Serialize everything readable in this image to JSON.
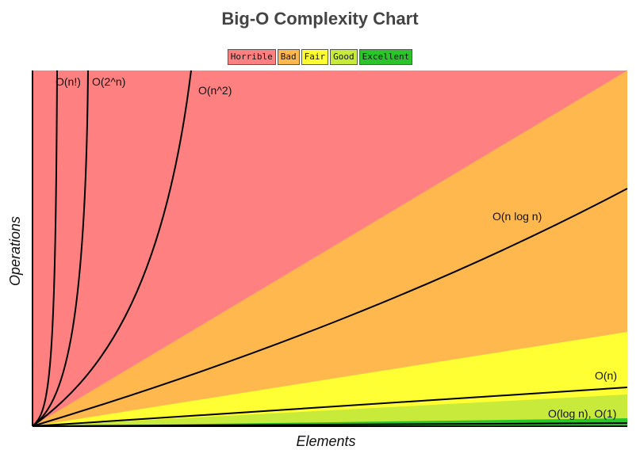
{
  "chart_data": {
    "type": "line",
    "title": "Big-O Complexity Chart",
    "xlabel": "Elements",
    "ylabel": "Operations",
    "grid": false,
    "legend_position": "top-center",
    "regions": [
      {
        "name": "Horrible",
        "color": "#ff8080"
      },
      {
        "name": "Bad",
        "color": "#ffb84d"
      },
      {
        "name": "Fair",
        "color": "#ffff33"
      },
      {
        "name": "Good",
        "color": "#c8ea3a"
      },
      {
        "name": "Excellent",
        "color": "#2bc52b"
      }
    ],
    "series": [
      {
        "name": "O(n!)"
      },
      {
        "name": "O(2^n)"
      },
      {
        "name": "O(n^2)"
      },
      {
        "name": "O(n log n)"
      },
      {
        "name": "O(n)"
      },
      {
        "name": "O(log n), O(1)"
      }
    ]
  }
}
